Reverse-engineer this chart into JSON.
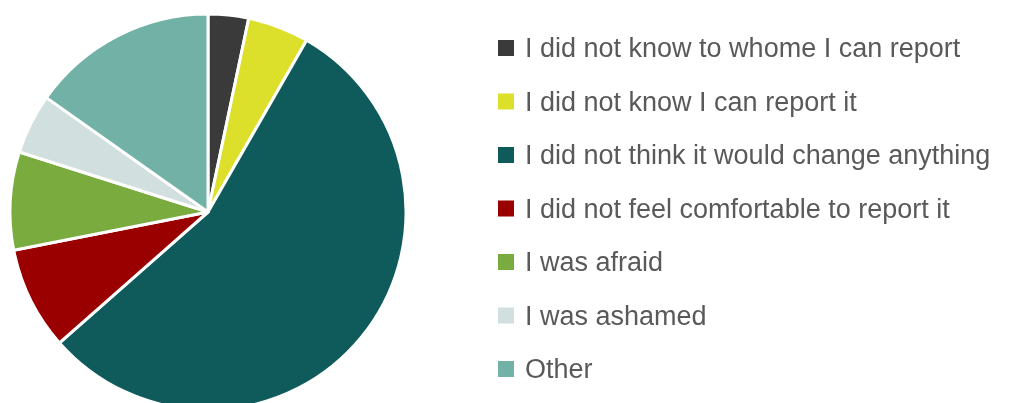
{
  "chart_data": {
    "type": "pie",
    "categories": [
      "I did not know to whome I can report",
      "I did not know I can report it",
      "I did not think it would change anything",
      "I did not feel comfortable to report it",
      "I was afraid",
      "I was ashamed",
      "Other"
    ],
    "values": [
      3.3,
      5,
      55.2,
      8.4,
      8,
      4.9,
      15.2
    ],
    "colors": [
      "#3a3a3a",
      "#dde02a",
      "#0f5a5a",
      "#9a0000",
      "#7aab3e",
      "#d2dfdf",
      "#72b2a6"
    ],
    "legend": "right"
  }
}
